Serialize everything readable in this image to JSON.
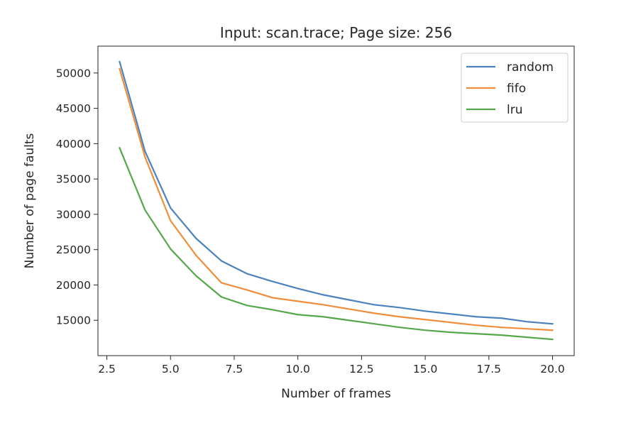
{
  "chart_data": {
    "type": "line",
    "title": "Input: scan.trace; Page size: 256",
    "xlabel": "Number of frames",
    "ylabel": "Number of page faults",
    "xlim": [
      2.15,
      20.85
    ],
    "ylim": [
      10000,
      53800
    ],
    "xticks": [
      2.5,
      5.0,
      7.5,
      10.0,
      12.5,
      15.0,
      17.5,
      20.0
    ],
    "xtick_labels": [
      "2.5",
      "5.0",
      "7.5",
      "10.0",
      "12.5",
      "15.0",
      "17.5",
      "20.0"
    ],
    "yticks": [
      15000,
      20000,
      25000,
      30000,
      35000,
      40000,
      45000,
      50000
    ],
    "ytick_labels": [
      "15000",
      "20000",
      "25000",
      "30000",
      "35000",
      "40000",
      "45000",
      "50000"
    ],
    "grid": false,
    "legend_position": "top-right",
    "x": [
      3,
      4,
      5,
      6,
      7,
      8,
      9,
      10,
      11,
      12,
      13,
      14,
      15,
      16,
      17,
      18,
      19,
      20
    ],
    "series": [
      {
        "name": "random",
        "color": "#4c82be",
        "values": [
          51600,
          38900,
          30900,
          26600,
          23400,
          21600,
          20500,
          19500,
          18600,
          17900,
          17200,
          16800,
          16300,
          15900,
          15500,
          15300,
          14800,
          14500
        ]
      },
      {
        "name": "fifo",
        "color": "#ef8d3a",
        "values": [
          50600,
          38100,
          29100,
          24200,
          20300,
          19300,
          18200,
          17700,
          17200,
          16600,
          16000,
          15500,
          15100,
          14700,
          14300,
          14000,
          13800,
          13600
        ]
      },
      {
        "name": "lru",
        "color": "#55a84a",
        "values": [
          39400,
          30600,
          25100,
          21300,
          18300,
          17100,
          16500,
          15800,
          15500,
          15000,
          14500,
          14000,
          13600,
          13300,
          13100,
          12900,
          12600,
          12300
        ]
      }
    ]
  }
}
